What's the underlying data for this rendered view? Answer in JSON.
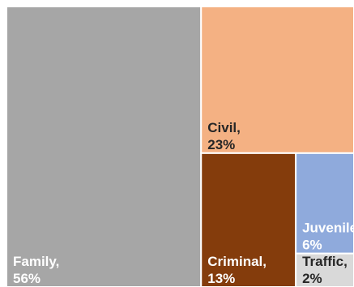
{
  "chart_data": {
    "type": "treemap",
    "title": "",
    "items": [
      {
        "label": "Family",
        "value": 56,
        "display_name": "Family,",
        "display_value": "56%",
        "color": "#a6a6a6",
        "text_color": "#ffffff"
      },
      {
        "label": "Civil",
        "value": 23,
        "display_name": "Civil,",
        "display_value": "23%",
        "color": "#f4b183",
        "text_color": "#262626"
      },
      {
        "label": "Criminal",
        "value": 13,
        "display_name": "Criminal,",
        "display_value": "13%",
        "color": "#843c0c",
        "text_color": "#ffffff"
      },
      {
        "label": "Juvenile",
        "value": 6,
        "display_name": "Juvenile,",
        "display_value": "6%",
        "color": "#8faadc",
        "text_color": "#ffffff"
      },
      {
        "label": "Traffic",
        "value": 2,
        "display_name": "Traffic,",
        "display_value": "2%",
        "color": "#d9d9d9",
        "text_color": "#262626"
      }
    ]
  }
}
